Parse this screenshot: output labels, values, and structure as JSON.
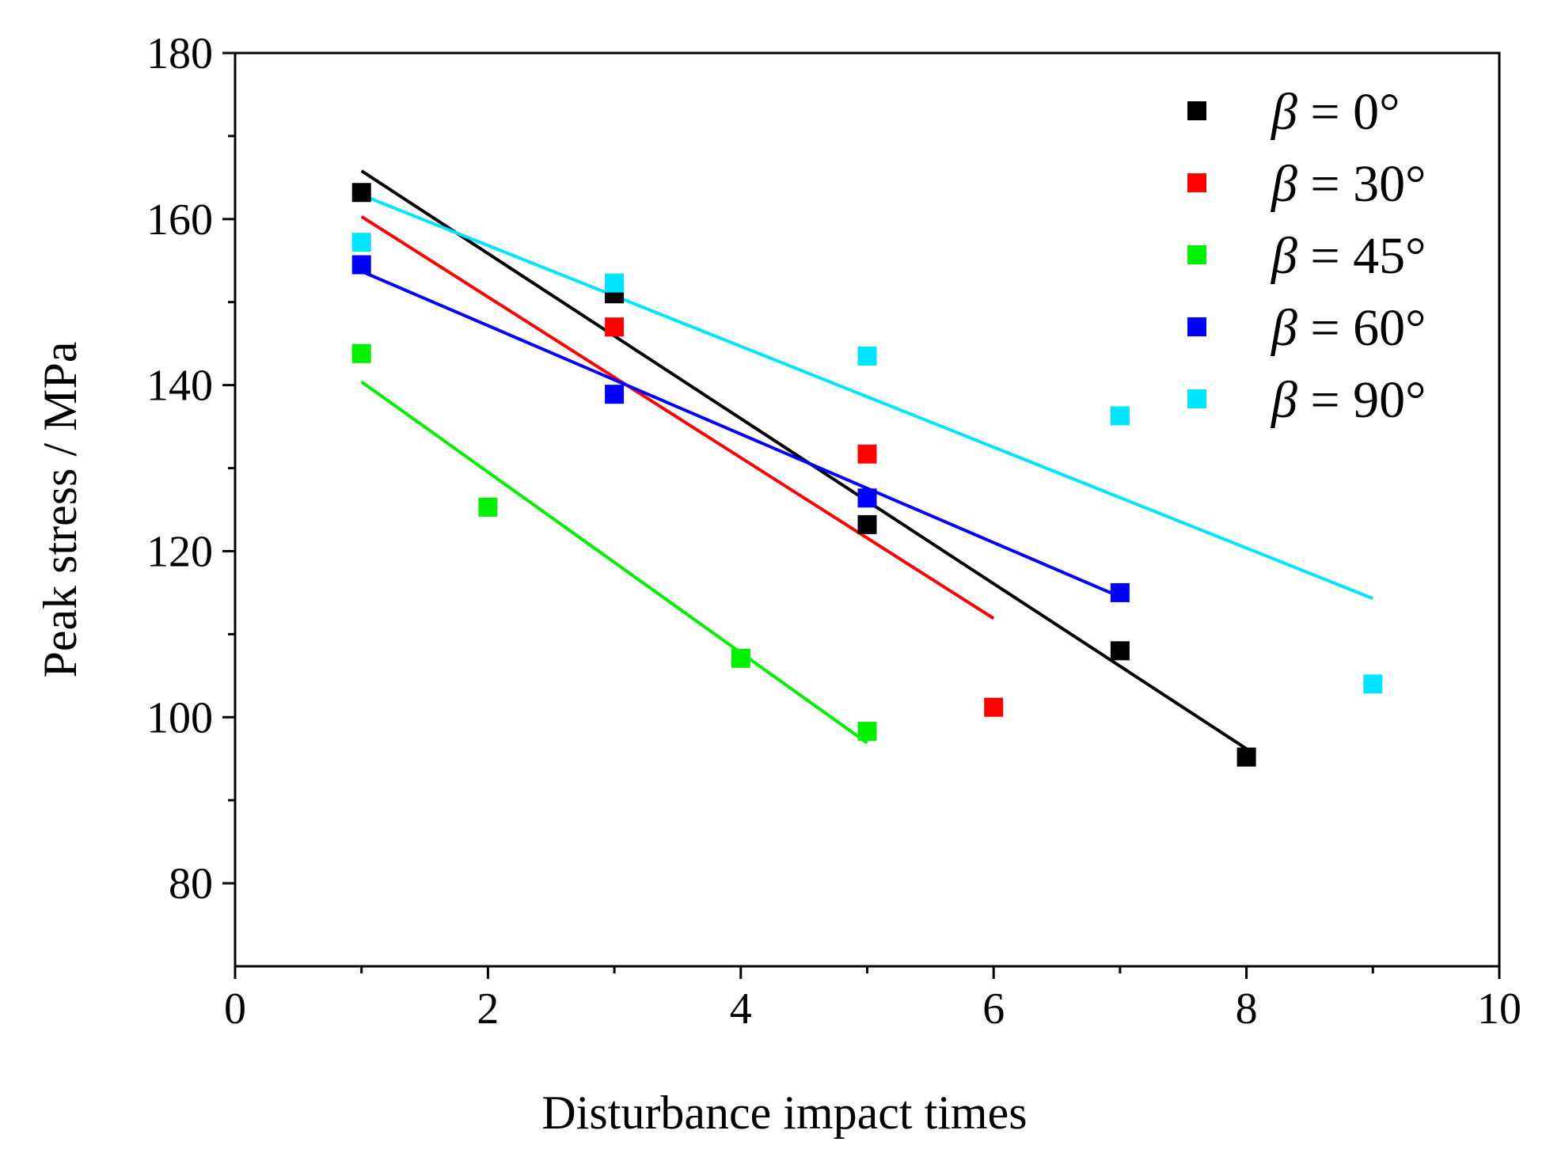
{
  "chart_data": {
    "type": "scatter",
    "xlabel": "Disturbance impact times",
    "ylabel": "Peak stress / MPa",
    "xlim": [
      0,
      10
    ],
    "ylim": [
      70,
      180
    ],
    "x_ticks": [
      0,
      2,
      4,
      6,
      8,
      10
    ],
    "x_tick_labels": [
      "0",
      "2",
      "4",
      "6",
      "8",
      "10"
    ],
    "y_ticks": [
      80,
      100,
      120,
      140,
      160,
      180
    ],
    "y_tick_labels": [
      "80",
      "100",
      "120",
      "140",
      "160",
      "180"
    ],
    "x_minor_ticks": [
      1,
      3,
      5,
      7,
      9
    ],
    "y_minor_ticks": [
      90,
      110,
      130,
      150,
      170
    ],
    "grid": false,
    "legend_position": "top-right",
    "series": [
      {
        "name": "β = 0°",
        "name_symbol": "β",
        "name_value": " = 0°",
        "color": "#000000",
        "points": [
          [
            1,
            163.2
          ],
          [
            3,
            151.0
          ],
          [
            5,
            123.2
          ],
          [
            7,
            108.0
          ],
          [
            8,
            95.2
          ]
        ],
        "fit": [
          [
            1,
            165.8
          ],
          [
            8,
            96.2
          ]
        ]
      },
      {
        "name": "β = 30°",
        "name_symbol": "β",
        "name_value": " = 30°",
        "color": "#ff0000",
        "points": [
          [
            3,
            147.0
          ],
          [
            5,
            131.7
          ],
          [
            6,
            101.2
          ]
        ],
        "fit": [
          [
            1,
            160.3
          ],
          [
            6,
            111.9
          ]
        ]
      },
      {
        "name": "β = 45°",
        "name_symbol": "β",
        "name_value": " = 45°",
        "color": "#00ee00",
        "points": [
          [
            1,
            143.8
          ],
          [
            2,
            125.3
          ],
          [
            4,
            107.1
          ],
          [
            5,
            98.3
          ]
        ],
        "fit": [
          [
            1,
            140.4
          ],
          [
            5,
            96.9
          ]
        ]
      },
      {
        "name": "β = 60°",
        "name_symbol": "β",
        "name_value": " = 60°",
        "color": "#0000ff",
        "points": [
          [
            1,
            154.5
          ],
          [
            3,
            138.9
          ],
          [
            5,
            126.4
          ],
          [
            7,
            115.0
          ]
        ],
        "fit": [
          [
            1,
            153.7
          ],
          [
            7,
            114.5
          ]
        ]
      },
      {
        "name": "β = 90°",
        "name_symbol": "β",
        "name_value": " = 90°",
        "color": "#00e5ff",
        "points": [
          [
            1,
            157.2
          ],
          [
            3,
            152.3
          ],
          [
            5,
            143.5
          ],
          [
            7,
            136.3
          ],
          [
            9,
            104.0
          ]
        ],
        "fit": [
          [
            1,
            162.9
          ],
          [
            9,
            114.3
          ]
        ]
      }
    ]
  }
}
